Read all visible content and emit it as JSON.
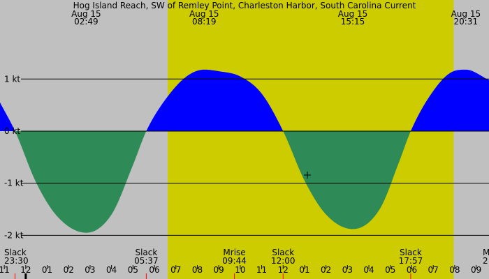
{
  "chart_data": {
    "type": "area",
    "title": "Hog Island Reach, SW of Remley Point, Charleston Harbor, South Carolina Current",
    "colors": {
      "night": "#c0c0c0",
      "day": "#cccc00",
      "flood": "#0000ff",
      "ebb": "#2e8b57",
      "axis": "#000000",
      "tick_daylight": "#ff0000",
      "tick_midnight": "#000000"
    },
    "x_range_hours": [
      -1.2,
      21.6
    ],
    "ylim": [
      -2.2,
      1.3
    ],
    "y_ticks": [
      {
        "value": 1,
        "label": "1 kt"
      },
      {
        "value": 0,
        "label": "0 kt"
      },
      {
        "value": -1,
        "label": "-1 kt"
      },
      {
        "value": -2,
        "label": "-2 kt"
      }
    ],
    "daylight_hours": [
      6.62,
      19.95
    ],
    "top_events": [
      {
        "date": "Aug 15",
        "time": "02:49",
        "hour": 2.82
      },
      {
        "date": "Aug 15",
        "time": "08:19",
        "hour": 8.32
      },
      {
        "date": "Aug 15",
        "time": "15:15",
        "hour": 15.25
      },
      {
        "date": "Aug 15",
        "time": "20:31",
        "hour": 20.52
      }
    ],
    "bottom_events": [
      {
        "label": "Slack",
        "time": "23:30",
        "hour": -0.5
      },
      {
        "label": "Slack",
        "time": "05:37",
        "hour": 5.62
      },
      {
        "label": "Mrise",
        "time": "09:44",
        "hour": 9.73
      },
      {
        "label": "Slack",
        "time": "12:00",
        "hour": 12.0
      },
      {
        "label": "Slack",
        "time": "17:57",
        "hour": 17.95
      },
      {
        "label": "M",
        "time": "2",
        "hour": 21.8
      }
    ],
    "hour_ticks": [
      {
        "label": "11",
        "hour": -1
      },
      {
        "label": "12",
        "hour": 0
      },
      {
        "label": "01",
        "hour": 1
      },
      {
        "label": "02",
        "hour": 2
      },
      {
        "label": "03",
        "hour": 3
      },
      {
        "label": "04",
        "hour": 4
      },
      {
        "label": "05",
        "hour": 5
      },
      {
        "label": "06",
        "hour": 6
      },
      {
        "label": "07",
        "hour": 7
      },
      {
        "label": "08",
        "hour": 8
      },
      {
        "label": "09",
        "hour": 9
      },
      {
        "label": "10",
        "hour": 10
      },
      {
        "label": "11",
        "hour": 11
      },
      {
        "label": "12",
        "hour": 12
      },
      {
        "label": "01",
        "hour": 13
      },
      {
        "label": "02",
        "hour": 14
      },
      {
        "label": "03",
        "hour": 15
      },
      {
        "label": "04",
        "hour": 16
      },
      {
        "label": "05",
        "hour": 17
      },
      {
        "label": "06",
        "hour": 18
      },
      {
        "label": "07",
        "hour": 19
      },
      {
        "label": "08",
        "hour": 20
      },
      {
        "label": "09",
        "hour": 21
      }
    ],
    "series": [
      {
        "values": [
          [
            -1.2,
            0.55
          ],
          [
            -0.5,
            0.0
          ],
          [
            0.5,
            -1.0
          ],
          [
            1.5,
            -1.65
          ],
          [
            2.82,
            -1.95
          ],
          [
            4.0,
            -1.6
          ],
          [
            5.0,
            -0.65
          ],
          [
            5.62,
            0.0
          ],
          [
            6.5,
            0.6
          ],
          [
            7.5,
            1.05
          ],
          [
            8.32,
            1.18
          ],
          [
            9.0,
            1.15
          ],
          [
            10.0,
            1.05
          ],
          [
            11.0,
            0.72
          ],
          [
            12.0,
            0.0
          ],
          [
            13.0,
            -0.95
          ],
          [
            14.0,
            -1.6
          ],
          [
            15.25,
            -1.88
          ],
          [
            16.5,
            -1.5
          ],
          [
            17.4,
            -0.6
          ],
          [
            17.95,
            0.0
          ],
          [
            18.8,
            0.65
          ],
          [
            19.8,
            1.12
          ],
          [
            20.52,
            1.18
          ],
          [
            21.6,
            0.98
          ]
        ]
      }
    ]
  }
}
